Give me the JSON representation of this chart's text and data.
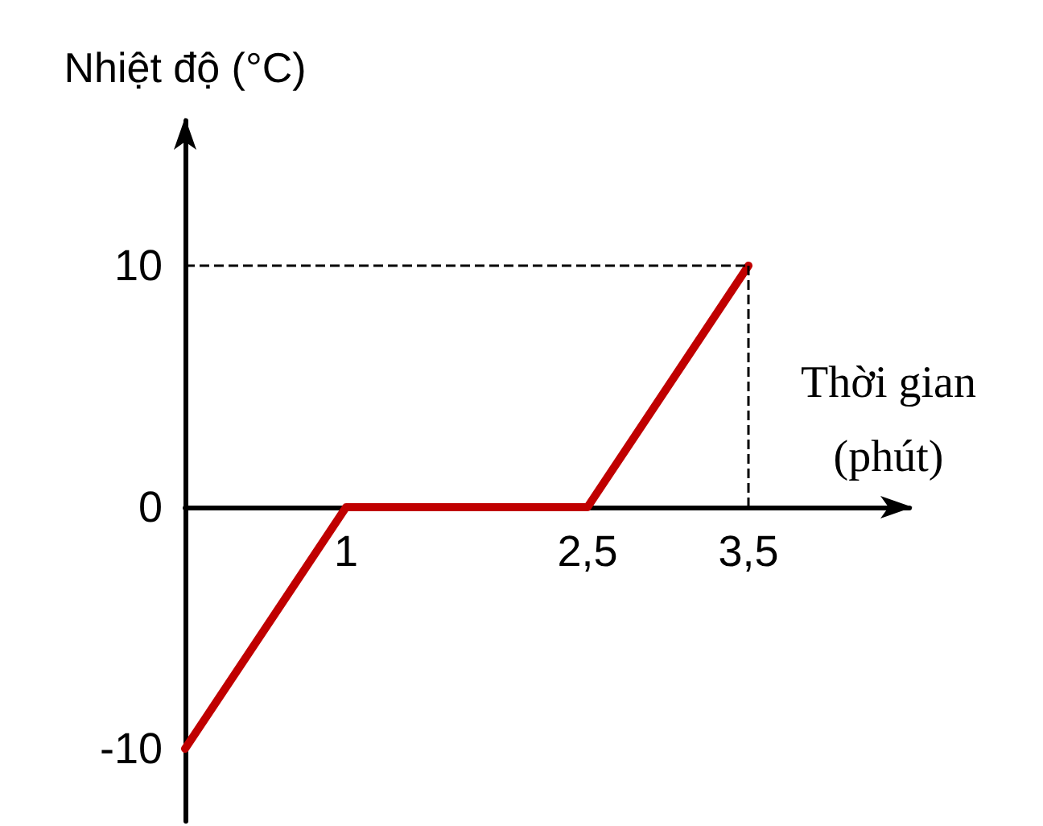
{
  "chart_data": {
    "type": "line",
    "ylabel": "Nhiệt độ (°C)",
    "xlabel": "Thời gian (phút)",
    "x": [
      0,
      1,
      2.5,
      3.5
    ],
    "series": [
      {
        "color": "#c00000",
        "values": [
          -10,
          0,
          0,
          10
        ]
      }
    ],
    "xlim": [
      0,
      4.5
    ],
    "xticks": [
      1,
      {
        "value": 2.5,
        "label": "2,5"
      },
      {
        "value": 3.5,
        "label": "3,5"
      }
    ],
    "ylim": [
      -13,
      16
    ],
    "yticks": [
      -10,
      0,
      10
    ],
    "ref_lines": [
      {
        "axis": "y",
        "value": 10,
        "color": "#000000",
        "line_style": "dashed"
      },
      {
        "axis": "x",
        "value": 3.5,
        "color": "#000000",
        "line_style": "dashed"
      }
    ],
    "grid": false,
    "marker": "none",
    "line_style": "solid"
  }
}
